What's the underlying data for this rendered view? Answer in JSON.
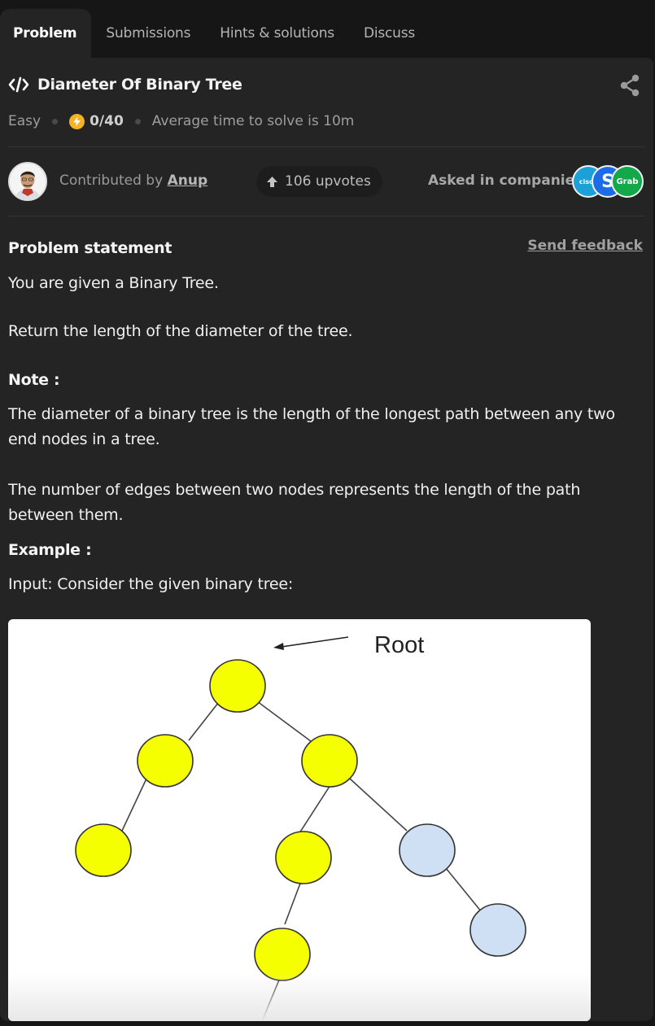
{
  "tabs": [
    {
      "label": "Problem",
      "active": true
    },
    {
      "label": "Submissions",
      "active": false
    },
    {
      "label": "Hints & solutions",
      "active": false
    },
    {
      "label": "Discuss",
      "active": false
    }
  ],
  "problem": {
    "title": "Diameter Of Binary Tree",
    "difficulty": "Easy",
    "score": "0/40",
    "avg_time": "Average time to solve is 10m"
  },
  "contributor": {
    "prefix": "Contributed by",
    "name": "Anup"
  },
  "upvotes": "106 upvotes",
  "asked_in": {
    "label": "Asked in companies",
    "companies": [
      {
        "name": "cisco",
        "text": "cisco",
        "color": "#1ba0d7"
      },
      {
        "name": "swiggy-s",
        "text": "S",
        "color": "#1c6ce8"
      },
      {
        "name": "grab",
        "text": "Grab",
        "color": "#13a84a"
      }
    ]
  },
  "statement": {
    "heading": "Problem statement",
    "send_feedback": "Send feedback",
    "line1": "You are given a Binary Tree.",
    "line2": "Return the length of the diameter of the tree.",
    "note_heading": "Note :",
    "note1": "The diameter of a binary tree is the length of the longest path between any two end nodes in a tree.",
    "note2": "The number of edges between two nodes represents the length of the path between them.",
    "example_heading": "Example :",
    "example_input": "Input: Consider the given binary tree:"
  },
  "diagram": {
    "root_label": "Root",
    "colors": {
      "highlight": "#f5ff00",
      "normal": "#cfdff4",
      "outline": "#333333"
    }
  }
}
